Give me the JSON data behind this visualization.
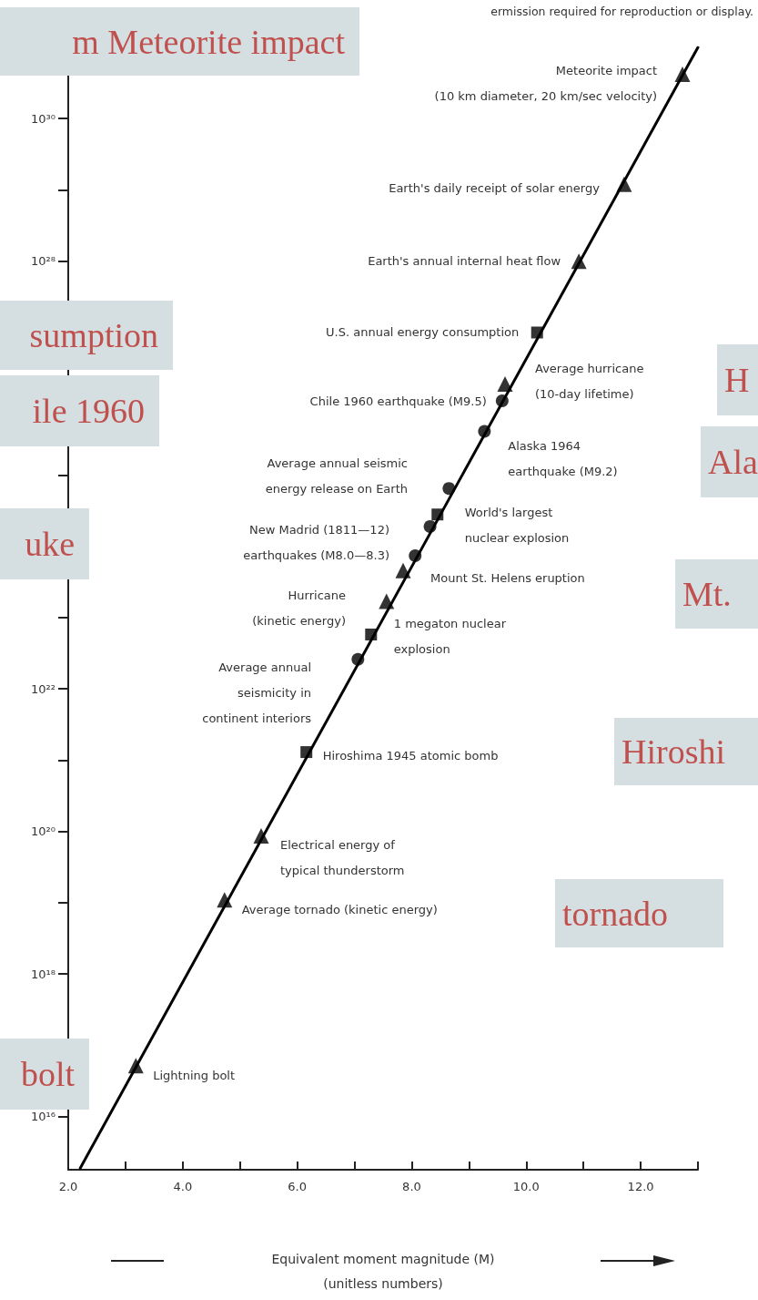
{
  "chart_data": {
    "type": "scatter",
    "xlabel": "Equivalent moment magnitude (M)\n(unitless numbers)",
    "xlim": [
      2,
      13
    ],
    "xticks": [
      {
        "value": 2,
        "label": "2.0"
      },
      {
        "value": 3,
        "label": null
      },
      {
        "value": 4,
        "label": "4.0"
      },
      {
        "value": 5,
        "label": null
      },
      {
        "value": 6,
        "label": "6.0"
      },
      {
        "value": 7,
        "label": null
      },
      {
        "value": 8,
        "label": "8.0"
      },
      {
        "value": 9,
        "label": null
      },
      {
        "value": 10,
        "label": "10.0"
      },
      {
        "value": 11,
        "label": null
      },
      {
        "value": 12,
        "label": "12.0"
      },
      {
        "value": 13,
        "label": null
      }
    ],
    "ylim": [
      1800000000000000.0,
      1e+31
    ],
    "log": true,
    "grid": false,
    "yticks": [
      {
        "value": 1e+16,
        "label": "10¹⁶"
      },
      {
        "value": 1e+17,
        "label": null
      },
      {
        "value": 1e+18,
        "label": "10¹⁸"
      },
      {
        "value": 1e+19,
        "label": null
      },
      {
        "value": 1e+20,
        "label": "10²⁰"
      },
      {
        "value": 1e+21,
        "label": null
      },
      {
        "value": 1e+22,
        "label": "10²²"
      },
      {
        "value": 1e+23,
        "label": null
      },
      {
        "value": 1e+24,
        "label": null
      },
      {
        "value": 1e+25,
        "label": null
      },
      {
        "value": 1e+26,
        "label": null
      },
      {
        "value": 1e+27,
        "label": null
      },
      {
        "value": 1e+28,
        "label": "10²⁸"
      },
      {
        "value": 1e+29,
        "label": null
      },
      {
        "value": 1e+30,
        "label": "10³⁰"
      }
    ],
    "series": [
      {
        "type": "line",
        "color": "#000000",
        "marker": "none",
        "x": [
          2.21,
          13.0
        ],
        "values": [
          1900000000000000.0,
          1e+31
        ]
      },
      {
        "color": "#000000",
        "marker": "triangle",
        "x": [
          12.73,
          11.71,
          10.92,
          9.63,
          7.85,
          7.56,
          5.37,
          4.73,
          3.18
        ],
        "values": [
          4.2e+30,
          1.2e+29,
          1e+28,
          1.9e+26,
          4.6e+23,
          1.7e+23,
          8.7e+19,
          1.1e+19,
          5.2e+16
        ]
      },
      {
        "color": "#000000",
        "marker": "circle",
        "x": [
          9.58,
          9.27,
          8.65,
          8.32,
          8.06,
          7.06
        ],
        "values": [
          1.1e+26,
          4.1e+25,
          6.5e+24,
          1.9e+24,
          7.4e+23,
          2.6e+22
        ]
      },
      {
        "color": "#000000",
        "marker": "square",
        "x": [
          10.19,
          8.45,
          7.29,
          6.16
        ],
        "values": [
          1e+27,
          2.8e+24,
          5.8e+22,
          1.3e+21
        ]
      }
    ],
    "annotations": [
      {
        "text": "Meteorite impact\n(10 km diameter, 20 km/sec velocity)",
        "x": 12.73,
        "y": 4.2e+30
      },
      {
        "text": "Earth's daily receipt of solar energy",
        "x": 11.71,
        "y": 1.2e+29
      },
      {
        "text": "Earth's annual internal heat flow",
        "x": 10.92,
        "y": 1e+28
      },
      {
        "text": "U.S. annual energy consumption",
        "x": 10.19,
        "y": 1e+27
      },
      "Average hurricane\n(10-day lifetime)",
      {
        "text": "Chile 1960 earthquake (M9.5)",
        "x": 9.58,
        "y": 1.1e+26
      },
      {
        "text": "Alaska 1964\nearthquake (M9.2)",
        "x": 9.27,
        "y": 4.1e+25
      },
      "Average annual seismic\nenergy release on Earth",
      {
        "text": "World's largest\nnuclear explosion",
        "x": 8.45,
        "y": 2.8e+24
      },
      "New Madrid (1811—12)\nearthquakes (M8.0—8.3)",
      {
        "text": "Mount St. Helens eruption",
        "x": 7.85,
        "y": 4.6e+23
      },
      "Hurricane\n(kinetic energy)",
      {
        "text": "1 megaton nuclear\nexplosion",
        "x": 7.29,
        "y": 5.8e+22
      },
      "Average annual\nseismicity in\ncontinent interiors",
      {
        "text": "Hiroshima 1945 atomic bomb",
        "x": 6.16,
        "y": 1.3e+21
      },
      {
        "text": "Electrical energy of\ntypical thunderstorm",
        "x": 5.37,
        "y": 8.7e+19
      },
      {
        "text": "Average tornado (kinetic energy)",
        "x": 4.73,
        "y": 1.1e+19
      },
      {
        "text": "Lightning bolt",
        "x": 3.18,
        "y": 5.2e+16
      },
      "ermission required for reproduction or display.",
      "m Meteorite impact",
      "sumption",
      "ile 1960",
      "uke",
      "bolt",
      "H",
      "Ala",
      "Mt.",
      "Hiroshi",
      "tornado"
    ]
  }
}
